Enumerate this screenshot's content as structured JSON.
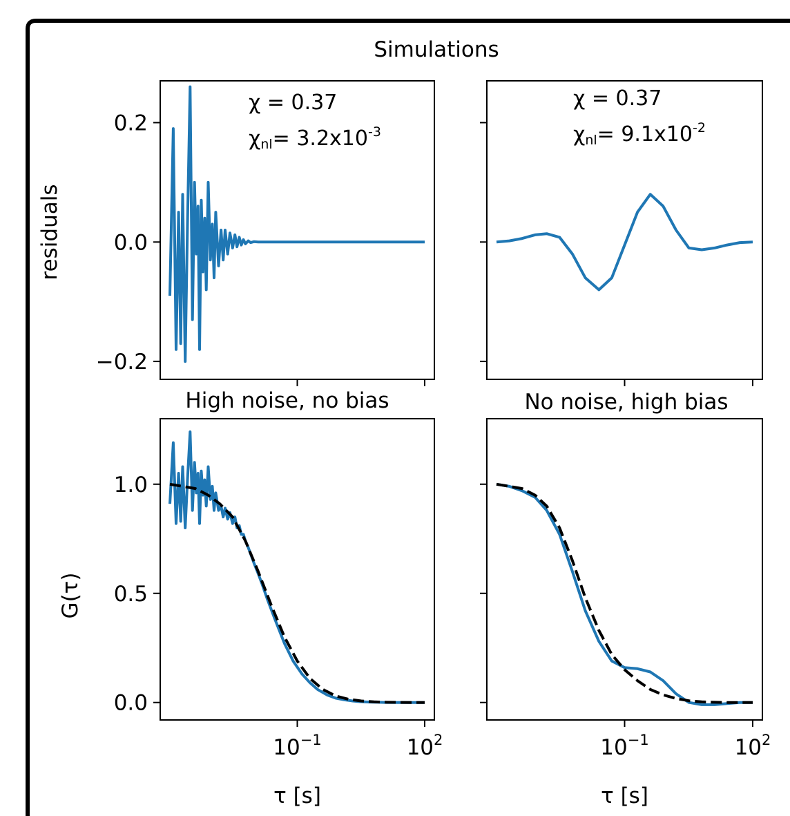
{
  "figure": {
    "suptitle": "Simulations",
    "colors": {
      "data": "#1f77b4",
      "fit": "#000000",
      "frame": "#000000"
    }
  },
  "chart_data": [
    {
      "id": "top-left",
      "type": "line",
      "ylabel": "residuals",
      "xscale": "log",
      "xlim": [
        0.0001,
        100
      ],
      "ylim": [
        -0.23,
        0.27
      ],
      "yticks": [
        {
          "value": -0.2,
          "label": "−0.2"
        },
        {
          "value": 0.0,
          "label": "0.0"
        },
        {
          "value": 0.2,
          "label": "0.2"
        }
      ],
      "annotation": {
        "chi": "χ = 0.37",
        "chi_nl_prefix": "χ",
        "chi_nl_sub": "nl",
        "chi_nl_value": "= 3.2x10",
        "chi_nl_exp": "-3"
      },
      "series": [
        {
          "style": "solid",
          "color": "#1f77b4",
          "x": [
            0.0001,
            0.00012,
            0.00014,
            0.00016,
            0.00018,
            0.0002,
            0.00023,
            0.00026,
            0.0003,
            0.00034,
            0.00038,
            0.00042,
            0.00046,
            0.0005,
            0.00055,
            0.0006,
            0.00066,
            0.00072,
            0.0008,
            0.0009,
            0.001,
            0.0011,
            0.0012,
            0.0014,
            0.0016,
            0.0018,
            0.002,
            0.0023,
            0.0026,
            0.003,
            0.0034,
            0.0038,
            0.0043,
            0.0048,
            0.0054,
            0.006,
            0.007,
            0.008,
            0.0095,
            0.012,
            0.02,
            100
          ],
          "y": [
            -0.09,
            0.19,
            -0.18,
            0.05,
            -0.17,
            0.08,
            -0.2,
            0.03,
            0.26,
            -0.13,
            0.1,
            -0.02,
            0.06,
            -0.18,
            0.07,
            -0.05,
            0.04,
            -0.08,
            0.1,
            -0.03,
            0.03,
            -0.06,
            0.05,
            -0.04,
            0.02,
            -0.03,
            0.02,
            -0.02,
            0.015,
            -0.01,
            0.012,
            -0.008,
            0.008,
            -0.005,
            0.004,
            -0.003,
            0.002,
            -0.001,
            0.0005,
            0.0,
            0.0,
            0.0
          ]
        }
      ]
    },
    {
      "id": "top-right",
      "type": "line",
      "xscale": "log",
      "xlim": [
        0.0001,
        100
      ],
      "ylim": [
        -0.23,
        0.27
      ],
      "annotation": {
        "chi": "χ = 0.37",
        "chi_nl_prefix": "χ",
        "chi_nl_sub": "nl",
        "chi_nl_value": "= 9.1x10",
        "chi_nl_exp": "-2"
      },
      "series": [
        {
          "style": "solid",
          "color": "#1f77b4",
          "x": [
            0.0001,
            0.0002,
            0.0004,
            0.0008,
            0.0015,
            0.003,
            0.006,
            0.012,
            0.025,
            0.05,
            0.1,
            0.2,
            0.4,
            0.8,
            1.6,
            3.2,
            6.4,
            12.8,
            25,
            50,
            100
          ],
          "y": [
            0.0,
            0.002,
            0.006,
            0.012,
            0.014,
            0.008,
            -0.02,
            -0.06,
            -0.08,
            -0.06,
            -0.005,
            0.05,
            0.08,
            0.06,
            0.02,
            -0.01,
            -0.013,
            -0.01,
            -0.005,
            -0.001,
            0.0
          ]
        }
      ]
    },
    {
      "id": "bottom-left",
      "type": "line",
      "title": "High noise, no bias",
      "ylabel": "G(τ)",
      "xlabel": "τ [s]",
      "xscale": "log",
      "xlim": [
        0.0001,
        100
      ],
      "ylim": [
        -0.08,
        1.3
      ],
      "xticks": [
        {
          "value": 0.1,
          "base": "10",
          "exp": "−1"
        },
        {
          "value": 100,
          "base": "10",
          "exp": "2"
        }
      ],
      "yticks": [
        {
          "value": 0.0,
          "label": "0.0"
        },
        {
          "value": 0.5,
          "label": "0.5"
        },
        {
          "value": 1.0,
          "label": "1.0"
        }
      ],
      "series": [
        {
          "style": "solid",
          "color": "#1f77b4",
          "x": [
            0.0001,
            0.00012,
            0.00014,
            0.00016,
            0.00018,
            0.0002,
            0.00023,
            0.00026,
            0.0003,
            0.00034,
            0.00038,
            0.00042,
            0.00046,
            0.0005,
            0.00055,
            0.0006,
            0.00066,
            0.00072,
            0.0008,
            0.0009,
            0.001,
            0.0011,
            0.0012,
            0.0014,
            0.0016,
            0.0018,
            0.002,
            0.0023,
            0.0026,
            0.003,
            0.0034,
            0.0038,
            0.0043,
            0.0048,
            0.0054,
            0.006,
            0.007,
            0.008,
            0.0095,
            0.012,
            0.015,
            0.02,
            0.03,
            0.05,
            0.08,
            0.13,
            0.2,
            0.3,
            0.5,
            0.8,
            1.3,
            2,
            3,
            5,
            8,
            13,
            20,
            40,
            100
          ],
          "y": [
            0.91,
            1.19,
            0.82,
            1.05,
            0.83,
            1.08,
            0.8,
            1.02,
            1.24,
            0.88,
            1.1,
            0.96,
            1.05,
            0.82,
            1.06,
            0.95,
            1.02,
            0.9,
            1.08,
            0.93,
            0.99,
            0.88,
            0.96,
            0.88,
            0.9,
            0.85,
            0.89,
            0.84,
            0.87,
            0.82,
            0.85,
            0.8,
            0.81,
            0.77,
            0.77,
            0.74,
            0.71,
            0.68,
            0.64,
            0.59,
            0.54,
            0.47,
            0.38,
            0.27,
            0.19,
            0.13,
            0.09,
            0.06,
            0.035,
            0.02,
            0.012,
            0.007,
            0.004,
            0.002,
            0.001,
            0.0,
            0.0,
            0.0,
            0.0
          ]
        },
        {
          "style": "dashed",
          "color": "#000000",
          "x": [
            0.0001,
            0.0002,
            0.0004,
            0.0008,
            0.0015,
            0.003,
            0.006,
            0.012,
            0.025,
            0.05,
            0.1,
            0.2,
            0.4,
            0.8,
            1.6,
            3.2,
            6.4,
            12.8,
            25,
            50,
            100
          ],
          "y": [
            1.0,
            0.99,
            0.98,
            0.95,
            0.91,
            0.85,
            0.74,
            0.6,
            0.44,
            0.3,
            0.19,
            0.11,
            0.06,
            0.03,
            0.015,
            0.007,
            0.003,
            0.001,
            0.0005,
            0.0,
            0.0
          ]
        }
      ]
    },
    {
      "id": "bottom-right",
      "type": "line",
      "title": "No noise, high bias",
      "xlabel": "τ [s]",
      "xscale": "log",
      "xlim": [
        0.0001,
        100
      ],
      "ylim": [
        -0.08,
        1.3
      ],
      "xticks": [
        {
          "value": 0.1,
          "base": "10",
          "exp": "−1"
        },
        {
          "value": 100,
          "base": "10",
          "exp": "2"
        }
      ],
      "series": [
        {
          "style": "solid",
          "color": "#1f77b4",
          "x": [
            0.0001,
            0.0002,
            0.0004,
            0.0008,
            0.0015,
            0.003,
            0.006,
            0.012,
            0.025,
            0.05,
            0.1,
            0.2,
            0.4,
            0.8,
            1.6,
            3.2,
            6.4,
            12.8,
            25,
            50,
            100
          ],
          "y": [
            1.0,
            0.99,
            0.97,
            0.94,
            0.88,
            0.77,
            0.6,
            0.42,
            0.28,
            0.19,
            0.16,
            0.155,
            0.14,
            0.1,
            0.04,
            0.0,
            -0.01,
            -0.01,
            -0.005,
            0.0,
            0.0
          ]
        },
        {
          "style": "dashed",
          "color": "#000000",
          "x": [
            0.0001,
            0.0002,
            0.0004,
            0.0008,
            0.0015,
            0.003,
            0.006,
            0.012,
            0.025,
            0.05,
            0.1,
            0.2,
            0.4,
            0.8,
            1.6,
            3.2,
            6.4,
            12.8,
            25,
            50,
            100
          ],
          "y": [
            1.0,
            0.99,
            0.98,
            0.95,
            0.9,
            0.8,
            0.65,
            0.48,
            0.33,
            0.22,
            0.15,
            0.1,
            0.06,
            0.035,
            0.018,
            0.008,
            0.003,
            0.001,
            0.0,
            0.0,
            0.0
          ]
        }
      ]
    }
  ]
}
